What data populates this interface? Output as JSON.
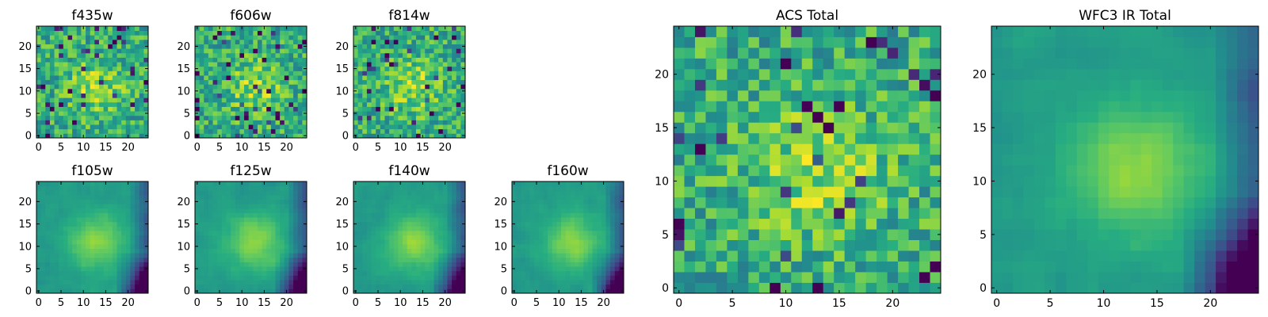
{
  "figure": {
    "colormap": "viridis",
    "background": "#ffffff"
  },
  "chart_data": [
    {
      "type": "heatmap",
      "title": "f435w",
      "xticks": [
        0,
        5,
        10,
        15,
        20
      ],
      "yticks": [
        0,
        5,
        10,
        15,
        20
      ],
      "xlim": [
        0,
        24
      ],
      "ylim": [
        0,
        24
      ],
      "grid": 25,
      "texture": "noise",
      "seed": 11
    },
    {
      "type": "heatmap",
      "title": "f606w",
      "xticks": [
        0,
        5,
        10,
        15,
        20
      ],
      "yticks": [
        0,
        5,
        10,
        15,
        20
      ],
      "xlim": [
        0,
        24
      ],
      "ylim": [
        0,
        24
      ],
      "grid": 25,
      "texture": "noise",
      "seed": 23
    },
    {
      "type": "heatmap",
      "title": "f814w",
      "xticks": [
        0,
        5,
        10,
        15,
        20
      ],
      "yticks": [
        0,
        5,
        10,
        15,
        20
      ],
      "xlim": [
        0,
        24
      ],
      "ylim": [
        0,
        24
      ],
      "grid": 25,
      "texture": "noise",
      "seed": 37
    },
    {
      "type": "heatmap",
      "title": "f105w",
      "xticks": [
        0,
        5,
        10,
        15,
        20
      ],
      "yticks": [
        0,
        5,
        10,
        15,
        20
      ],
      "xlim": [
        0,
        24
      ],
      "ylim": [
        0,
        24
      ],
      "grid": 25,
      "texture": "smooth",
      "seed": 41
    },
    {
      "type": "heatmap",
      "title": "f125w",
      "xticks": [
        0,
        5,
        10,
        15,
        20
      ],
      "yticks": [
        0,
        5,
        10,
        15,
        20
      ],
      "xlim": [
        0,
        24
      ],
      "ylim": [
        0,
        24
      ],
      "grid": 25,
      "texture": "smooth",
      "seed": 53
    },
    {
      "type": "heatmap",
      "title": "f140w",
      "xticks": [
        0,
        5,
        10,
        15,
        20
      ],
      "yticks": [
        0,
        5,
        10,
        15,
        20
      ],
      "xlim": [
        0,
        24
      ],
      "ylim": [
        0,
        24
      ],
      "grid": 25,
      "texture": "smooth",
      "seed": 67
    },
    {
      "type": "heatmap",
      "title": "f160w",
      "xticks": [
        0,
        5,
        10,
        15,
        20
      ],
      "yticks": [
        0,
        5,
        10,
        15,
        20
      ],
      "xlim": [
        0,
        24
      ],
      "ylim": [
        0,
        24
      ],
      "grid": 25,
      "texture": "smooth",
      "seed": 79
    },
    {
      "type": "heatmap",
      "title": "ACS Total",
      "xticks": [
        0,
        5,
        10,
        15,
        20
      ],
      "yticks": [
        0,
        5,
        10,
        15,
        20
      ],
      "xlim": [
        0,
        24
      ],
      "ylim": [
        0,
        24
      ],
      "grid": 25,
      "texture": "noise",
      "seed": 97
    },
    {
      "type": "heatmap",
      "title": "WFC3 IR Total",
      "xticks": [
        0,
        5,
        10,
        15,
        20
      ],
      "yticks": [
        0,
        5,
        10,
        15,
        20
      ],
      "xlim": [
        0,
        24
      ],
      "ylim": [
        0,
        24
      ],
      "grid": 25,
      "texture": "smooth",
      "seed": 113
    }
  ]
}
